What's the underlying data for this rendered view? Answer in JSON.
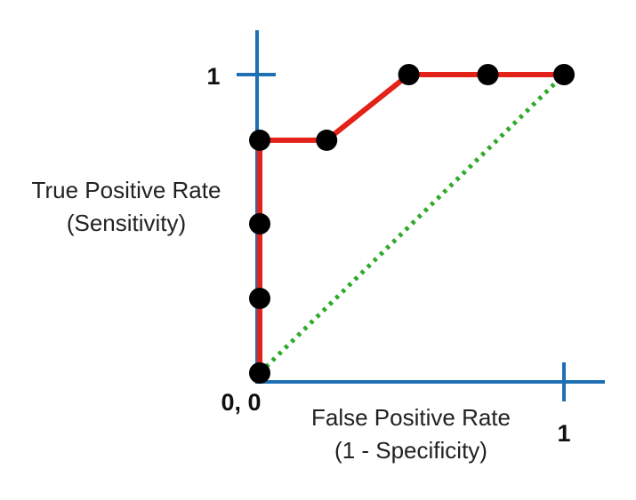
{
  "colors": {
    "axis": "#1f6fb4",
    "roc": "#e32219",
    "diagonal": "#2eaa2a",
    "point": "#000000"
  },
  "labels": {
    "y_tick_one": "1",
    "x_tick_one": "1",
    "origin": "0, 0",
    "ylabel_line1": "True Positive Rate",
    "ylabel_line2": "(Sensitivity)",
    "xlabel_line1": "False Positive Rate",
    "xlabel_line2": "(1 - Specificity)"
  },
  "chart_data": {
    "type": "line",
    "title": "",
    "xlabel": "False Positive Rate (1 - Specificity)",
    "ylabel": "True Positive Rate (Sensitivity)",
    "xlim": [
      0,
      1
    ],
    "ylim": [
      0,
      1
    ],
    "grid": false,
    "legend": "none",
    "x_ticks": [
      "1"
    ],
    "y_ticks": [
      "1"
    ],
    "origin_label": "0, 0",
    "series": [
      {
        "style": "solid",
        "color": "#e32219",
        "x": [
          0,
          0,
          0,
          0,
          0.22,
          0.49,
          0.75,
          1.0
        ],
        "y": [
          0,
          0.25,
          0.5,
          0.78,
          0.78,
          1.0,
          1.0,
          1.0
        ]
      },
      {
        "style": "dotted",
        "color": "#2eaa2a",
        "x": [
          0,
          1
        ],
        "y": [
          0,
          1
        ]
      }
    ],
    "points": {
      "x": [
        0,
        0,
        0,
        0,
        0.22,
        0.49,
        0.75,
        1.0
      ],
      "y": [
        0,
        0.25,
        0.5,
        0.78,
        0.78,
        1.0,
        1.0,
        1.0
      ]
    }
  }
}
